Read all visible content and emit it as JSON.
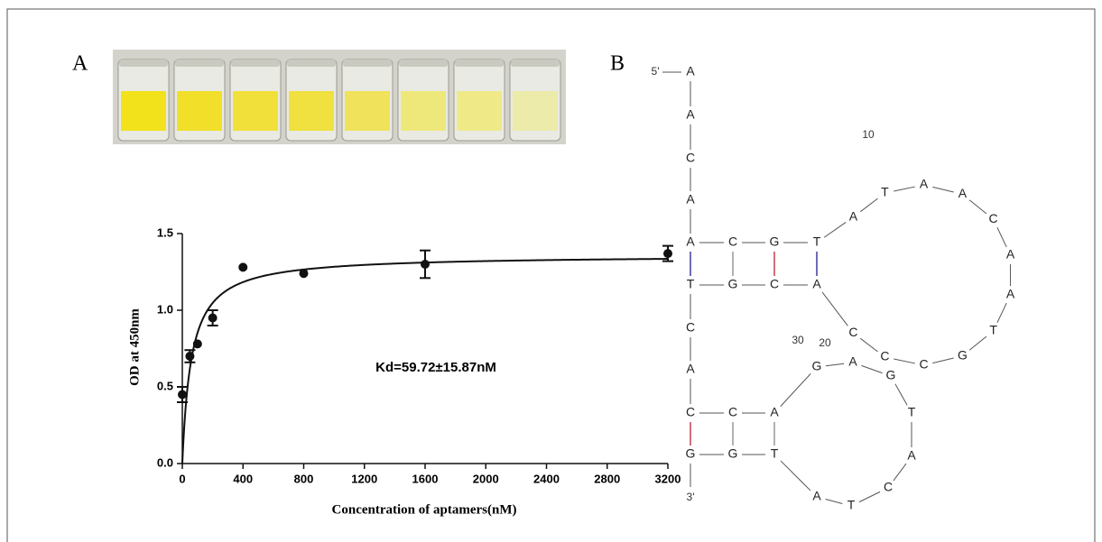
{
  "panel_labels": [
    "A",
    "B"
  ],
  "chart_data": {
    "type": "scatter",
    "x_label": "Concentration of aptamers(nM)",
    "y_label": "OD at 450nm",
    "annotation": "Kd=59.72±15.87nM",
    "x": [
      0,
      50,
      100,
      200,
      400,
      800,
      1600,
      3200
    ],
    "values": [
      0.45,
      0.7,
      0.78,
      0.95,
      1.28,
      1.24,
      1.3,
      1.37
    ],
    "errors": [
      0.05,
      0.04,
      null,
      0.05,
      null,
      null,
      0.09,
      0.05
    ],
    "fit": {
      "bmax": 1.36,
      "kd": 59.72
    },
    "color": "#111111",
    "xlim": [
      0,
      3200
    ],
    "xticks": [
      0,
      400,
      800,
      1200,
      1600,
      2000,
      2400,
      2800,
      3200
    ],
    "ylim": [
      0,
      1.5
    ],
    "yticks": [
      {
        "value": 0,
        "label": "0.0"
      },
      0.5,
      {
        "value": 1,
        "label": "1.0"
      },
      1.5
    ]
  },
  "structure": {
    "five_prime": "5'",
    "three_prime": "3'",
    "bases": [
      "A",
      "A",
      "C",
      "A",
      "A",
      "C",
      "G",
      "T",
      "A",
      "T",
      "A",
      "A",
      "C",
      "A",
      "A",
      "T",
      "G",
      "C",
      "C",
      "C",
      "A",
      "C",
      "G",
      "T",
      "C",
      "A",
      "C",
      "C",
      "A",
      "G",
      "A",
      "G",
      "T",
      "A",
      "C",
      "T",
      "A",
      "T",
      "G",
      "G"
    ],
    "position_labels": [
      "10",
      "20",
      "30"
    ]
  }
}
